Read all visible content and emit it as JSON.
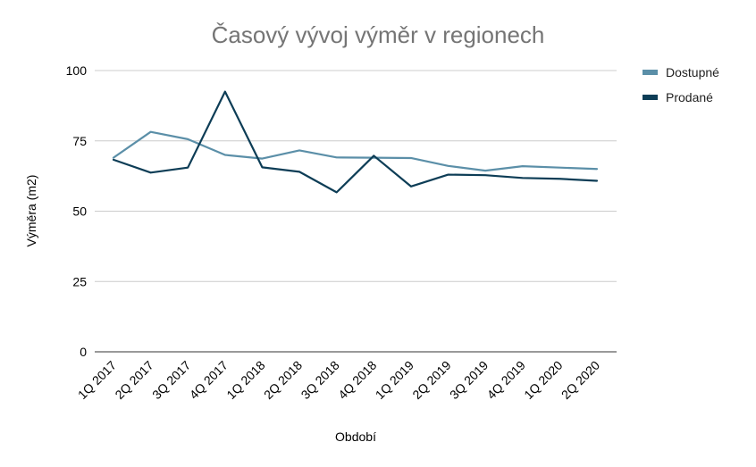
{
  "chart_data": {
    "type": "line",
    "title": "Časový vývoj výměr v regionech",
    "xlabel": "Období",
    "ylabel": "Výměra (m2)",
    "ylim": [
      0,
      100
    ],
    "yticks": [
      "0",
      "25",
      "50",
      "75",
      "100"
    ],
    "categories": [
      "1Q 2017",
      "2Q 2017",
      "3Q 2017",
      "4Q 2017",
      "1Q 2018",
      "2Q 2018",
      "3Q 2018",
      "4Q 2018",
      "1Q 2019",
      "2Q 2019",
      "3Q 2019",
      "4Q 2019",
      "1Q 2020",
      "2Q 2020"
    ],
    "series": [
      {
        "name": "Dostupné",
        "color": "#5b8fa8",
        "values": [
          69,
          78.2,
          75.6,
          70,
          68.7,
          71.6,
          69.1,
          69,
          68.9,
          66.1,
          64.4,
          66,
          65.5,
          65
        ]
      },
      {
        "name": "Prodané",
        "color": "#0d3d56",
        "values": [
          68.3,
          63.7,
          65.5,
          92.5,
          65.6,
          64,
          56.7,
          69.7,
          58.8,
          63,
          62.8,
          61.8,
          61.5,
          60.8
        ]
      }
    ],
    "grid": true,
    "legend_position": "right"
  }
}
